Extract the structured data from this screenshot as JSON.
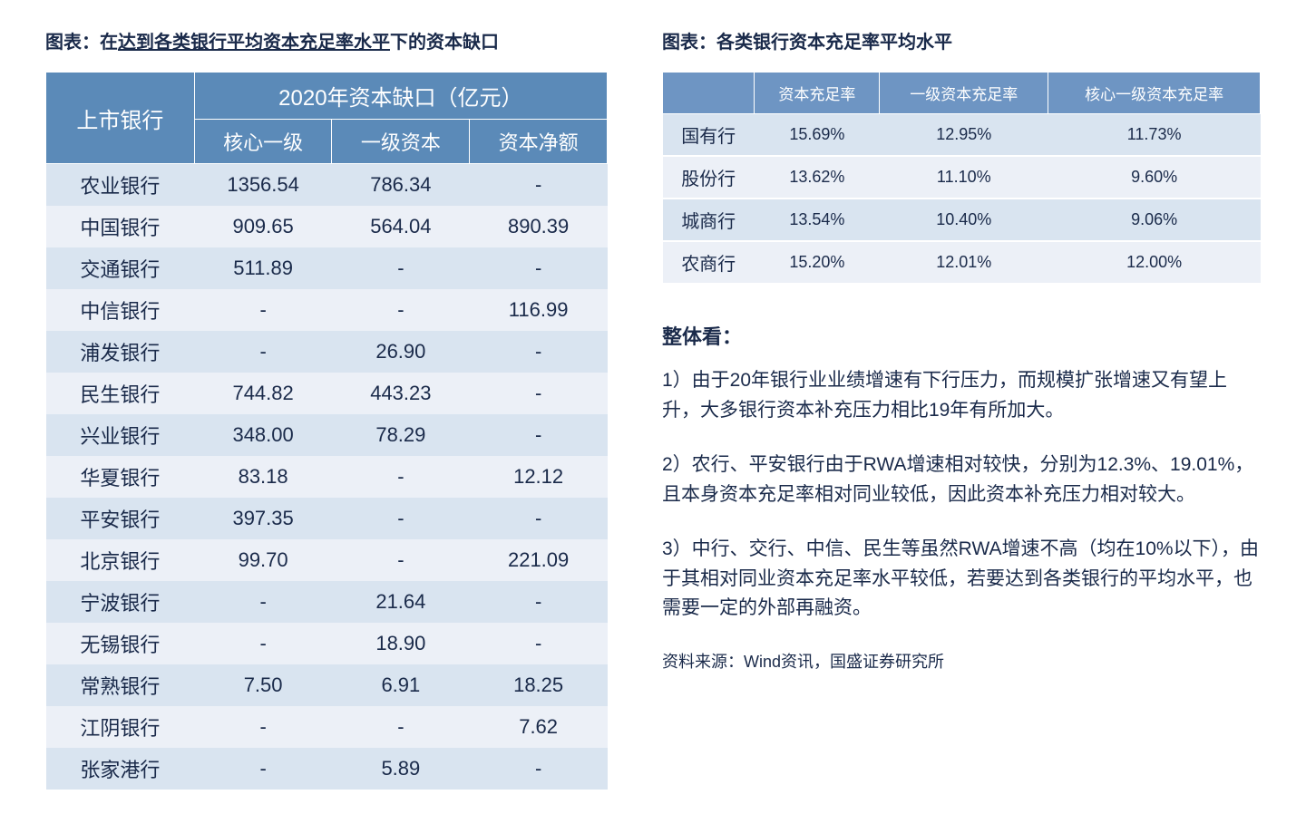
{
  "left": {
    "title_prefix": "图表：在",
    "title_underlined": "达到各类银行平均资本充足率水平",
    "title_suffix": "下的资本缺口",
    "table": {
      "row_header": "上市银行",
      "merged_header": "2020年资本缺口（亿元）",
      "subheaders": [
        "核心一级",
        "一级资本",
        "资本净额"
      ],
      "rows": [
        {
          "bank": "农业银行",
          "core_tier1": "1356.54",
          "tier1": "786.34",
          "net_capital": "-"
        },
        {
          "bank": "中国银行",
          "core_tier1": "909.65",
          "tier1": "564.04",
          "net_capital": "890.39"
        },
        {
          "bank": "交通银行",
          "core_tier1": "511.89",
          "tier1": "-",
          "net_capital": "-"
        },
        {
          "bank": "中信银行",
          "core_tier1": "-",
          "tier1": "-",
          "net_capital": "116.99"
        },
        {
          "bank": "浦发银行",
          "core_tier1": "-",
          "tier1": "26.90",
          "net_capital": "-"
        },
        {
          "bank": "民生银行",
          "core_tier1": "744.82",
          "tier1": "443.23",
          "net_capital": "-"
        },
        {
          "bank": "兴业银行",
          "core_tier1": "348.00",
          "tier1": "78.29",
          "net_capital": "-"
        },
        {
          "bank": "华夏银行",
          "core_tier1": "83.18",
          "tier1": "-",
          "net_capital": "12.12"
        },
        {
          "bank": "平安银行",
          "core_tier1": "397.35",
          "tier1": "-",
          "net_capital": "-"
        },
        {
          "bank": "北京银行",
          "core_tier1": "99.70",
          "tier1": "-",
          "net_capital": "221.09"
        },
        {
          "bank": "宁波银行",
          "core_tier1": "-",
          "tier1": "21.64",
          "net_capital": "-"
        },
        {
          "bank": "无锡银行",
          "core_tier1": "-",
          "tier1": "18.90",
          "net_capital": "-"
        },
        {
          "bank": "常熟银行",
          "core_tier1": "7.50",
          "tier1": "6.91",
          "net_capital": "18.25"
        },
        {
          "bank": "江阴银行",
          "core_tier1": "-",
          "tier1": "-",
          "net_capital": "7.62"
        },
        {
          "bank": "张家港行",
          "core_tier1": "-",
          "tier1": "5.89",
          "net_capital": "-"
        }
      ],
      "header_bg": "#5b8ab8",
      "header_text_color": "#ffffff",
      "row_odd_bg": "#d9e4f0",
      "row_even_bg": "#ecf0f7",
      "text_color": "#1a2a4a"
    }
  },
  "right": {
    "title": "图表：各类银行资本充足率平均水平",
    "table": {
      "headers": [
        "",
        "资本充足率",
        "一级资本充足率",
        "核心一级资本充足率"
      ],
      "rows": [
        {
          "type": "国有行",
          "car": "15.69%",
          "tier1_car": "12.95%",
          "core_tier1_car": "11.73%"
        },
        {
          "type": "股份行",
          "car": "13.62%",
          "tier1_car": "11.10%",
          "core_tier1_car": "9.60%"
        },
        {
          "type": "城商行",
          "car": "13.54%",
          "tier1_car": "10.40%",
          "core_tier1_car": "9.06%"
        },
        {
          "type": "农商行",
          "car": "15.20%",
          "tier1_car": "12.01%",
          "core_tier1_car": "12.00%"
        }
      ],
      "header_bg": "#6e95c3",
      "header_text_color": "#ffffff",
      "row_odd_bg": "#d9e4f0",
      "row_even_bg": "#ecf0f7",
      "text_color": "#1a2a4a"
    },
    "summary_heading": "整体看：",
    "summary_paras": [
      "1）由于20年银行业业绩增速有下行压力，而规模扩张增速又有望上升，大多银行资本补充压力相比19年有所加大。",
      "2）农行、平安银行由于RWA增速相对较快，分别为12.3%、19.01%，且本身资本充足率相对同业较低，因此资本补充压力相对较大。",
      "3）中行、交行、中信、民生等虽然RWA增速不高（均在10%以下），由于其相对同业资本充足率水平较低，若要达到各类银行的平均水平，也需要一定的外部再融资。"
    ],
    "source": "资料来源：Wind资讯，国盛证券研究所"
  }
}
